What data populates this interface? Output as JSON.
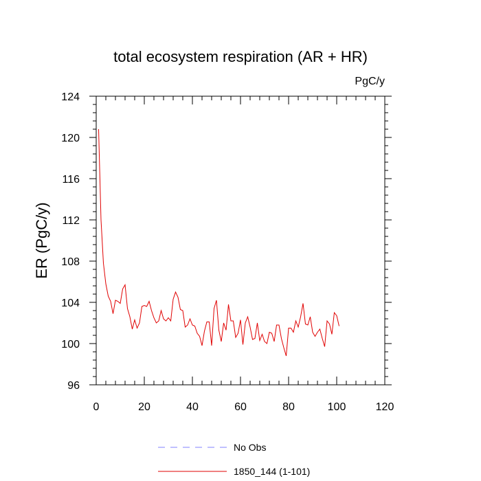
{
  "chart_data": {
    "type": "line",
    "title": "total ecosystem respiration (AR + HR)",
    "units": "PgC/y",
    "xlabel": "",
    "ylabel": "ER  (PgC/y)",
    "xlim": [
      0,
      120
    ],
    "ylim": [
      96,
      124
    ],
    "xticks": [
      0,
      20,
      40,
      60,
      80,
      100,
      120
    ],
    "yticks": [
      96,
      100,
      104,
      108,
      112,
      116,
      120,
      124
    ],
    "legend_position": "bottom-center",
    "series": [
      {
        "name": "No Obs",
        "color": "#8080ff",
        "dash": true,
        "x": [],
        "values": []
      },
      {
        "name": "1850_144 (1-101)",
        "color": "#e00000",
        "dash": false,
        "x": [
          1,
          2,
          3,
          4,
          5,
          6,
          7,
          8,
          9,
          10,
          11,
          12,
          13,
          14,
          15,
          16,
          17,
          18,
          19,
          20,
          21,
          22,
          23,
          24,
          25,
          26,
          27,
          28,
          29,
          30,
          31,
          32,
          33,
          34,
          35,
          36,
          37,
          38,
          39,
          40,
          41,
          42,
          43,
          44,
          45,
          46,
          47,
          48,
          49,
          50,
          51,
          52,
          53,
          54,
          55,
          56,
          57,
          58,
          59,
          60,
          61,
          62,
          63,
          64,
          65,
          66,
          67,
          68,
          69,
          70,
          71,
          72,
          73,
          74,
          75,
          76,
          77,
          78,
          79,
          80,
          81,
          82,
          83,
          84,
          85,
          86,
          87,
          88,
          89,
          90,
          91,
          92,
          93,
          94,
          95,
          96,
          97,
          98,
          99,
          100,
          101
        ],
        "values": [
          120.8,
          112.0,
          107.8,
          105.8,
          104.6,
          104.1,
          102.9,
          104.2,
          104.1,
          103.9,
          105.3,
          105.7,
          103.4,
          102.6,
          101.4,
          102.3,
          101.5,
          102.0,
          103.6,
          103.7,
          103.6,
          104.1,
          103.2,
          102.5,
          102.0,
          102.2,
          103.2,
          102.4,
          102.2,
          102.5,
          102.2,
          104.3,
          105.0,
          104.5,
          103.3,
          103.2,
          101.6,
          101.8,
          102.4,
          101.8,
          101.7,
          101.0,
          100.7,
          99.8,
          101.2,
          102.1,
          102.1,
          99.8,
          103.4,
          104.2,
          101.3,
          100.2,
          102.0,
          101.3,
          103.8,
          102.2,
          102.2,
          100.6,
          101.0,
          102.3,
          99.9,
          102.0,
          102.6,
          101.6,
          100.4,
          100.5,
          102.0,
          100.3,
          100.9,
          100.2,
          100.0,
          101.1,
          101.0,
          100.2,
          101.8,
          101.8,
          100.5,
          99.6,
          98.8,
          101.5,
          101.5,
          101.1,
          102.2,
          101.6,
          102.6,
          103.9,
          101.9,
          101.8,
          102.6,
          101.1,
          100.7,
          101.1,
          101.4,
          100.5,
          99.7,
          102.2,
          101.9,
          100.9,
          103.0,
          102.7,
          101.7
        ]
      }
    ]
  }
}
